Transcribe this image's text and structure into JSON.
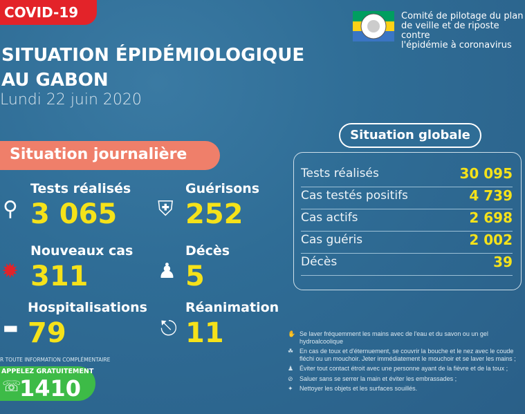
{
  "header": {
    "badge": "COVID-19",
    "title_line1": "SITUATION ÉPIDÉMIOLOGIQUE",
    "title_line2": "AU GABON",
    "date": "Lundi 22 juin 2020"
  },
  "organization": {
    "line1": "Comité de pilotage du plan",
    "line2": "de veille et de riposte contre",
    "line3": "l'épidémie à coronavirus",
    "flag_colors": [
      "#009e60",
      "#fcd116",
      "#3a75c4"
    ]
  },
  "daily": {
    "title": "Situation journalière",
    "items": [
      {
        "label": "Tests réalisés",
        "value": "3 065",
        "icon": "magnifier-icon"
      },
      {
        "label": "Guérisons",
        "value": "252",
        "icon": "shield-virus-icon"
      },
      {
        "label": "Nouveaux cas",
        "value": "311",
        "icon": "virus-icon"
      },
      {
        "label": "Décès",
        "value": "5",
        "icon": "person-icon"
      },
      {
        "label": "Hospitalisations",
        "value": "79",
        "icon": "hospital-bed-icon"
      },
      {
        "label": "Réanimation",
        "value": "11",
        "icon": "oxygen-tank-icon"
      }
    ]
  },
  "global": {
    "title": "Situation globale",
    "rows": [
      {
        "label": "Tests réalisés",
        "value": "30 095"
      },
      {
        "label": "Cas testés positifs",
        "value": "4 739"
      },
      {
        "label": "Cas actifs",
        "value": "2 698"
      },
      {
        "label": "Cas guéris",
        "value": "2 002"
      },
      {
        "label": "Décès",
        "value": "39"
      }
    ]
  },
  "tips": [
    "Se laver fréquemment les mains avec de l'eau et du savon ou un gel hydroalcoolique",
    "En cas de toux et d'éternuement, se couvrir la bouche et le nez avec le coude fléchi ou un mouchoir. Jeter immédiatement le mouchoir et se laver les mains ;",
    "Éviter tout contact étroit avec une personne ayant de la fièvre et de la toux ;",
    "Saluer sans se serrer la main et éviter les embrassades ;",
    "Nettoyer les objets et les surfaces souillés."
  ],
  "hotline": {
    "info": "R TOUTE INFORMATION COMPLÉMENTAIRE",
    "call": "APPELEZ GRATUITEMENT",
    "number": "1410"
  },
  "colors": {
    "accent_yellow": "#f5e21a",
    "red": "#e32329",
    "salmon": "#ef7f6a",
    "green": "#3dbb47"
  }
}
